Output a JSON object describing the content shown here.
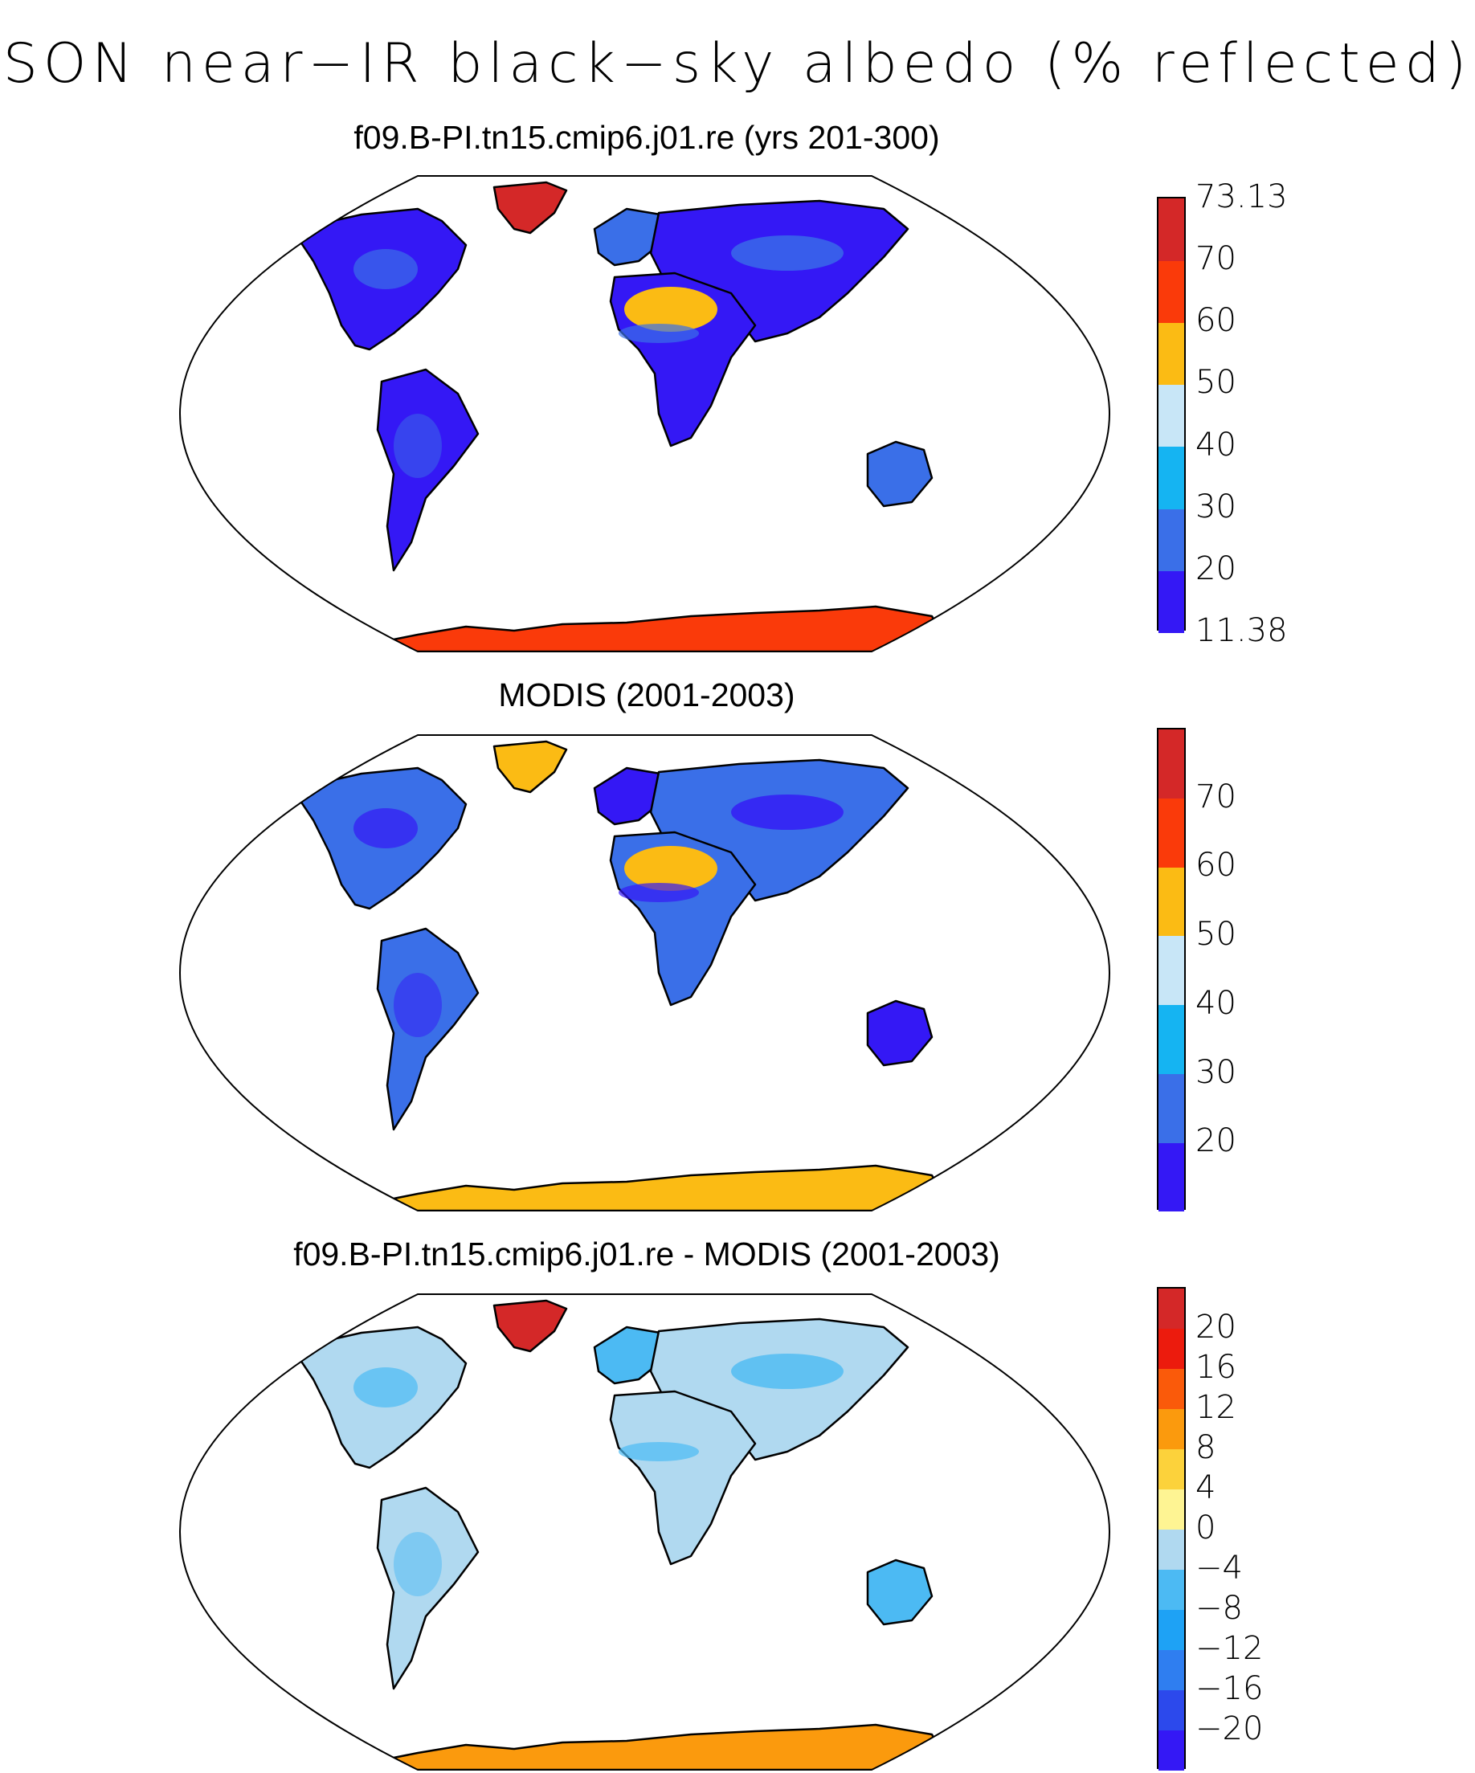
{
  "title": "SON near−IR black−sky albedo (% reflected)",
  "panels": [
    {
      "id": "model",
      "title": "f09.B-PI.tn15.cmip6.j01.re (yrs 201-300)",
      "colors": [
        "#3418f5",
        "#3a6fe8",
        "#15b4f2",
        "#c8e6f7",
        "#fbbb14",
        "#fa3a0a",
        "#d42828"
      ],
      "labels": [
        "11.38",
        "20",
        "30",
        "40",
        "50",
        "60",
        "70",
        "73.13"
      ],
      "greenland": "#d42828",
      "antarctica": "#fa3a0a",
      "sahara": "#fbbb14",
      "land": "#3418f5",
      "land2": "#3a6fe8"
    },
    {
      "id": "obs",
      "title": "MODIS (2001-2003)",
      "colors": [
        "#3418f5",
        "#3a6fe8",
        "#15b4f2",
        "#c8e6f7",
        "#fbbb14",
        "#fa3a0a",
        "#d42828"
      ],
      "labels": [
        "20",
        "30",
        "40",
        "50",
        "60",
        "70"
      ],
      "greenland": "#fbbb14",
      "antarctica": "#fbbb14",
      "sahara": "#fbbb14",
      "land": "#3a6fe8",
      "land2": "#3418f5"
    },
    {
      "id": "diff",
      "title": "f09.B-PI.tn15.cmip6.j01.re - MODIS (2001-2003)",
      "colors": [
        "#3418f5",
        "#2c49ec",
        "#2f7ef0",
        "#1ea2f5",
        "#4cbaf3",
        "#b0d9f0",
        "#fef493",
        "#fcd23b",
        "#fb9a0d",
        "#fa5a0a",
        "#ec1b0d",
        "#d42828"
      ],
      "labels": [
        "−20",
        "−16",
        "−12",
        "−8",
        "−4",
        "0",
        "4",
        "8",
        "12",
        "16",
        "20"
      ],
      "greenland": "#d42828",
      "antarctica": "#fb9a0d",
      "sahara": "#b0d9f0",
      "land": "#b0d9f0",
      "land2": "#4cbaf3"
    }
  ]
}
